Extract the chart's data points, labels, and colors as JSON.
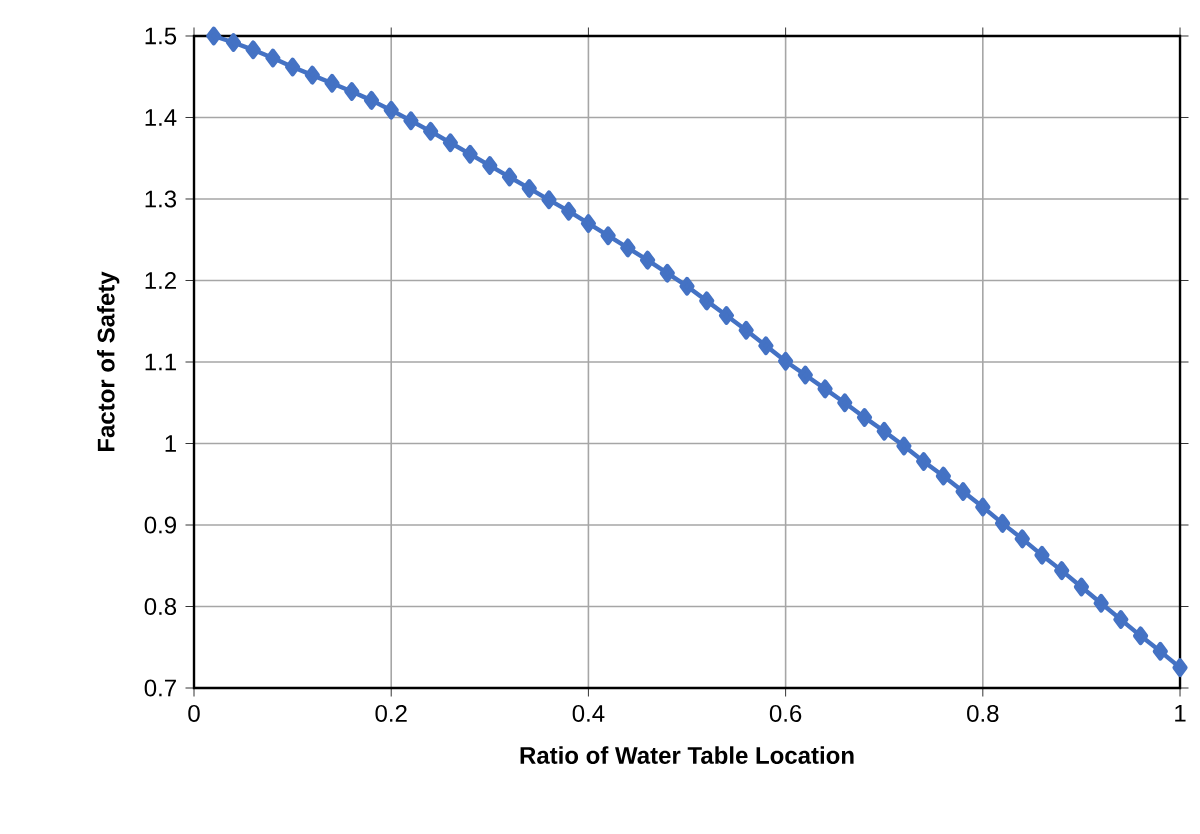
{
  "chart_data": {
    "type": "line",
    "xlabel": "Ratio of Water Table Location",
    "ylabel": "Factor of Safety",
    "x": [
      0.02,
      0.04,
      0.06,
      0.08,
      0.1,
      0.12,
      0.14,
      0.16,
      0.18,
      0.2,
      0.22,
      0.24,
      0.26,
      0.28,
      0.3,
      0.32,
      0.34,
      0.36,
      0.38,
      0.4,
      0.42,
      0.44,
      0.46,
      0.48,
      0.5,
      0.52,
      0.54,
      0.56,
      0.58,
      0.6,
      0.62,
      0.64,
      0.66,
      0.68,
      0.7,
      0.72,
      0.74,
      0.76,
      0.78,
      0.8,
      0.82,
      0.84,
      0.86,
      0.88,
      0.9,
      0.92,
      0.94,
      0.96,
      0.98,
      1.0
    ],
    "series": [
      {
        "color": "#4472c4",
        "values": [
          1.5,
          1.492,
          1.483,
          1.473,
          1.462,
          1.452,
          1.442,
          1.432,
          1.421,
          1.409,
          1.396,
          1.383,
          1.369,
          1.355,
          1.341,
          1.327,
          1.313,
          1.299,
          1.285,
          1.27,
          1.255,
          1.24,
          1.225,
          1.209,
          1.193,
          1.175,
          1.157,
          1.139,
          1.12,
          1.101,
          1.084,
          1.067,
          1.05,
          1.032,
          1.015,
          0.997,
          0.978,
          0.96,
          0.941,
          0.922,
          0.902,
          0.883,
          0.863,
          0.844,
          0.824,
          0.804,
          0.784,
          0.764,
          0.745,
          0.725
        ]
      }
    ],
    "xlim": [
      0,
      1
    ],
    "xticks": [
      0,
      0.2,
      0.4,
      0.6,
      0.8,
      1
    ],
    "ylim": [
      0.7,
      1.5
    ],
    "yticks": [
      0.7,
      0.8,
      0.9,
      1,
      1.1,
      1.2,
      1.3,
      1.4,
      1.5
    ],
    "grid": true,
    "marker": "diamond",
    "line_style": "solid"
  }
}
